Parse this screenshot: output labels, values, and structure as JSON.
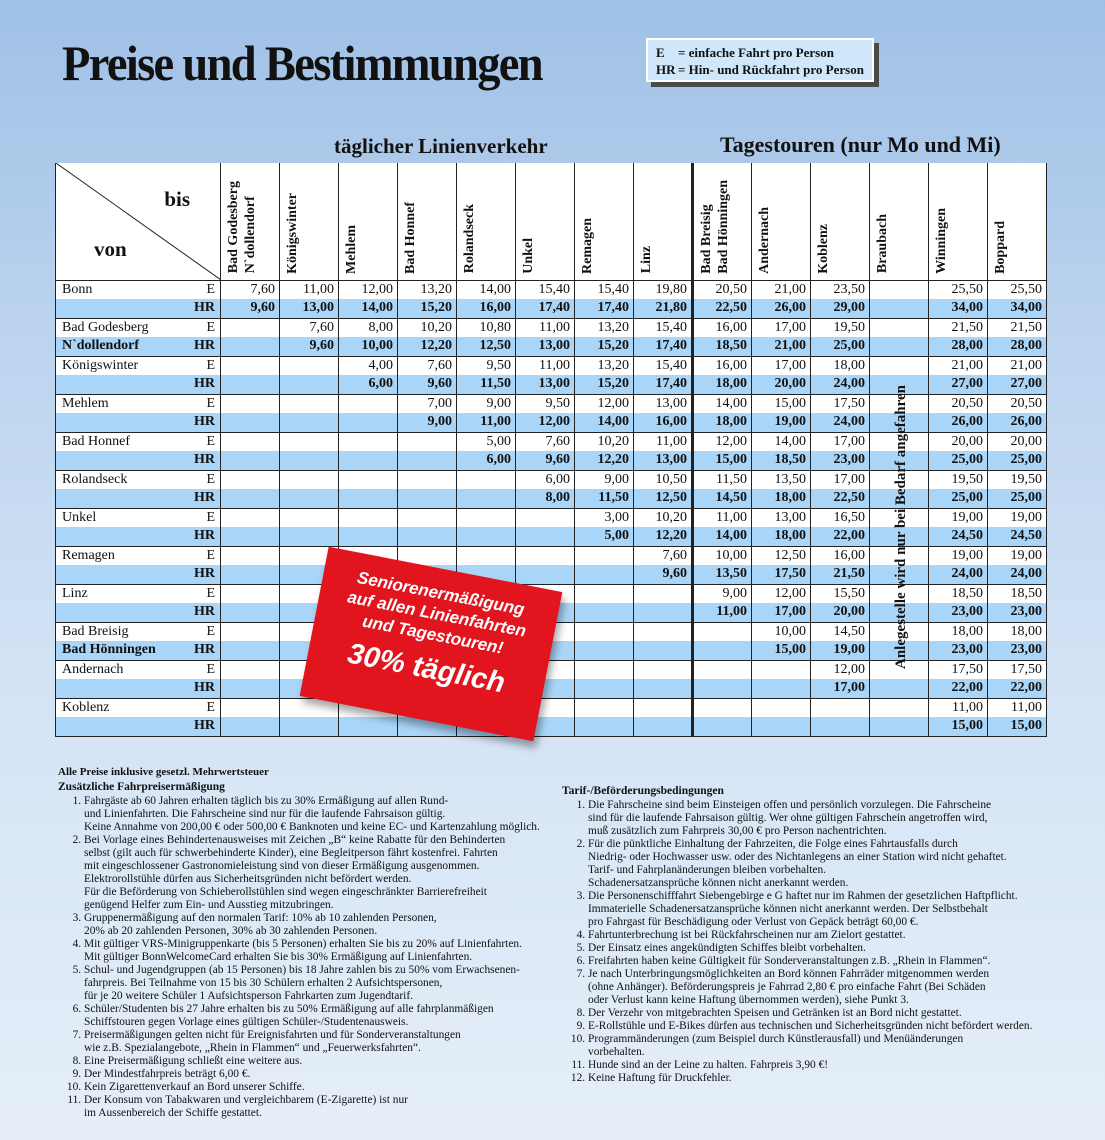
{
  "title": "Preise und Bestimmungen",
  "legend": [
    {
      "key": "E",
      "text": "= einfache Fahrt pro Person"
    },
    {
      "key": "HR",
      "text": "= Hin- und Rückfahrt pro Person"
    }
  ],
  "sections": {
    "daily": "täglicher Linienverkehr",
    "tours": "Tagestouren (nur Mo und Mi)"
  },
  "corner": {
    "to": "bis",
    "from": "von"
  },
  "columns": [
    [
      "Bad Godesberg",
      "N`dollendorf"
    ],
    [
      "Königswinter"
    ],
    [
      "Mehlem"
    ],
    [
      "Bad Honnef"
    ],
    [
      "Rolandseck"
    ],
    [
      "Unkel"
    ],
    [
      "Remagen"
    ],
    [
      "Linz"
    ],
    [
      "Bad Breisig",
      "Bad Hönningen"
    ],
    [
      "Andernach"
    ],
    [
      "Koblenz"
    ],
    [
      "Braubach"
    ],
    [
      "Winningen"
    ],
    [
      "Boppard"
    ]
  ],
  "rows": [
    {
      "from": [
        "Bonn",
        ""
      ],
      "E": [
        "7,60",
        "11,00",
        "12,00",
        "13,20",
        "14,00",
        "15,40",
        "15,40",
        "19,80",
        "20,50",
        "21,00",
        "23,50",
        "",
        "25,50",
        "25,50"
      ],
      "HR": [
        "9,60",
        "13,00",
        "14,00",
        "15,20",
        "16,00",
        "17,40",
        "17,40",
        "21,80",
        "22,50",
        "26,00",
        "29,00",
        "",
        "34,00",
        "34,00"
      ]
    },
    {
      "from": [
        "Bad Godesberg",
        "N`dollendorf"
      ],
      "E": [
        "",
        "7,60",
        "8,00",
        "10,20",
        "10,80",
        "11,00",
        "13,20",
        "15,40",
        "16,00",
        "17,00",
        "19,50",
        "",
        "21,50",
        "21,50"
      ],
      "HR": [
        "",
        "9,60",
        "10,00",
        "12,20",
        "12,50",
        "13,00",
        "15,20",
        "17,40",
        "18,50",
        "21,00",
        "25,00",
        "",
        "28,00",
        "28,00"
      ]
    },
    {
      "from": [
        "Königswinter",
        ""
      ],
      "E": [
        "",
        "",
        "4,00",
        "7,60",
        "9,50",
        "11,00",
        "13,20",
        "15,40",
        "16,00",
        "17,00",
        "18,00",
        "",
        "21,00",
        "21,00"
      ],
      "HR": [
        "",
        "",
        "6,00",
        "9,60",
        "11,50",
        "13,00",
        "15,20",
        "17,40",
        "18,00",
        "20,00",
        "24,00",
        "",
        "27,00",
        "27,00"
      ]
    },
    {
      "from": [
        "Mehlem",
        ""
      ],
      "E": [
        "",
        "",
        "",
        "7,00",
        "9,00",
        "9,50",
        "12,00",
        "13,00",
        "14,00",
        "15,00",
        "17,50",
        "",
        "20,50",
        "20,50"
      ],
      "HR": [
        "",
        "",
        "",
        "9,00",
        "11,00",
        "12,00",
        "14,00",
        "16,00",
        "18,00",
        "19,00",
        "24,00",
        "",
        "26,00",
        "26,00"
      ]
    },
    {
      "from": [
        "Bad Honnef",
        ""
      ],
      "E": [
        "",
        "",
        "",
        "",
        "5,00",
        "7,60",
        "10,20",
        "11,00",
        "12,00",
        "14,00",
        "17,00",
        "",
        "20,00",
        "20,00"
      ],
      "HR": [
        "",
        "",
        "",
        "",
        "6,00",
        "9,60",
        "12,20",
        "13,00",
        "15,00",
        "18,50",
        "23,00",
        "",
        "25,00",
        "25,00"
      ]
    },
    {
      "from": [
        "Rolandseck",
        ""
      ],
      "E": [
        "",
        "",
        "",
        "",
        "",
        "6,00",
        "9,00",
        "10,50",
        "11,50",
        "13,50",
        "17,00",
        "",
        "19,50",
        "19,50"
      ],
      "HR": [
        "",
        "",
        "",
        "",
        "",
        "8,00",
        "11,50",
        "12,50",
        "14,50",
        "18,00",
        "22,50",
        "",
        "25,00",
        "25,00"
      ]
    },
    {
      "from": [
        "Unkel",
        ""
      ],
      "E": [
        "",
        "",
        "",
        "",
        "",
        "",
        "3,00",
        "10,20",
        "11,00",
        "13,00",
        "16,50",
        "",
        "19,00",
        "19,00"
      ],
      "HR": [
        "",
        "",
        "",
        "",
        "",
        "",
        "5,00",
        "12,20",
        "14,00",
        "18,00",
        "22,00",
        "",
        "24,50",
        "24,50"
      ]
    },
    {
      "from": [
        "Remagen",
        ""
      ],
      "E": [
        "",
        "",
        "",
        "",
        "",
        "",
        "",
        "7,60",
        "10,00",
        "12,50",
        "16,00",
        "",
        "19,00",
        "19,00"
      ],
      "HR": [
        "",
        "",
        "",
        "",
        "",
        "",
        "",
        "9,60",
        "13,50",
        "17,50",
        "21,50",
        "",
        "24,00",
        "24,00"
      ]
    },
    {
      "from": [
        "Linz",
        ""
      ],
      "E": [
        "",
        "",
        "",
        "",
        "",
        "",
        "",
        "",
        "9,00",
        "12,00",
        "15,50",
        "",
        "18,50",
        "18,50"
      ],
      "HR": [
        "",
        "",
        "",
        "",
        "",
        "",
        "",
        "",
        "11,00",
        "17,00",
        "20,00",
        "",
        "23,00",
        "23,00"
      ]
    },
    {
      "from": [
        "Bad Breisig",
        "Bad Hönningen"
      ],
      "E": [
        "",
        "",
        "",
        "",
        "",
        "",
        "",
        "",
        "",
        "10,00",
        "14,50",
        "",
        "18,00",
        "18,00"
      ],
      "HR": [
        "",
        "",
        "",
        "",
        "",
        "",
        "",
        "",
        "",
        "15,00",
        "19,00",
        "",
        "23,00",
        "23,00"
      ]
    },
    {
      "from": [
        "Andernach",
        ""
      ],
      "E": [
        "",
        "",
        "",
        "",
        "",
        "",
        "",
        "",
        "",
        "",
        "12,00",
        "",
        "17,50",
        "17,50"
      ],
      "HR": [
        "",
        "",
        "",
        "",
        "",
        "",
        "",
        "",
        "",
        "",
        "17,00",
        "",
        "22,00",
        "22,00"
      ]
    },
    {
      "from": [
        "Koblenz",
        ""
      ],
      "E": [
        "",
        "",
        "",
        "",
        "",
        "",
        "",
        "",
        "",
        "",
        "",
        "",
        "11,00",
        "11,00"
      ],
      "HR": [
        "",
        "",
        "",
        "",
        "",
        "",
        "",
        "",
        "",
        "",
        "",
        "",
        "15,00",
        "15,00"
      ]
    }
  ],
  "codes": {
    "e": "E",
    "hr": "HR"
  },
  "braubach_note": "Anlegestelle wird nur bei Bedarf angefahren",
  "badge": {
    "line1": "Seniorenermäßigung",
    "line2": "auf allen Linienfahrten",
    "line3": "und Tagestouren!",
    "line4": "30% täglich"
  },
  "vat_note": "Alle Preise inklusive gesetzl. Mehrwertsteuer",
  "left_section": {
    "heading": "Zusätzliche Fahrpreisermäßigung",
    "items": [
      [
        "Fahrgäste ab 60 Jahren erhalten täglich bis zu 30% Ermäßigung auf allen Rund-",
        "und Linienfahrten. Die Fahrscheine sind nur für die laufende Fahrsaison gültig.",
        "Keine Annahme von 200,00 € oder 500,00 € Banknoten und keine EC- und Kartenzahlung möglich."
      ],
      [
        "Bei Vorlage eines Behindertenausweises mit Zeichen „B“ keine Rabatte für den Behinderten",
        "selbst (gilt auch für schwerbehinderte Kinder), eine  Begleitperson fährt kostenfrei. Fahrten",
        "mit eingeschlossener Gastronomieleistung sind von dieser Ermäßigung ausgenommen.",
        "Elektrorollstühle dürfen aus Sicherheitsgründen nicht befördert werden.",
        "Für die Beförderung von Schieberollstühlen sind wegen eingeschränkter Barrierefreiheit",
        "genügend Helfer zum Ein- und Ausstieg mitzubringen."
      ],
      [
        "Gruppenermäßigung auf den normalen Tarif: 10% ab 10 zahlenden Personen,",
        "20% ab 20 zahlenden Personen, 30% ab 30 zahlenden Personen."
      ],
      [
        "Mit gültiger VRS-Minigruppenkarte (bis 5 Personen) erhalten Sie bis zu 20% auf Linienfahrten.",
        "Mit gültiger BonnWelcomeCard erhalten Sie bis 30% Ermäßigung auf Linienfahrten."
      ],
      [
        "Schul- und Jugendgruppen (ab 15 Personen) bis 18 Jahre zahlen bis zu 50% vom Erwachsenen-",
        "fahrpreis. Bei Teilnahme von 15 bis 30 Schülern erhalten 2 Aufsichtspersonen,",
        "für je 20 weitere Schüler 1 Aufsichtsperson Fahrkarten zum Jugendtarif."
      ],
      [
        "Schüler/Studenten bis 27 Jahre erhalten bis zu 50% Ermäßigung auf alle fahrplanmäßigen",
        "Schiffstouren gegen Vorlage eines gültigen Schüler-/Studentenausweis."
      ],
      [
        "Preisermäßigungen gelten nicht für Ereignisfahrten und für Sonderveranstaltungen",
        "wie z.B. Spezialangebote, „Rhein in Flammen“ und „Feuerwerksfahrten“."
      ],
      [
        "Eine Preisermäßigung schließt eine weitere aus."
      ],
      [
        "Der Mindestfahrpreis beträgt 6,00 €."
      ],
      [
        "Kein Zigarettenverkauf an Bord unserer Schiffe."
      ],
      [
        "Der Konsum von Tabakwaren und vergleichbarem (E-Zigarette) ist nur",
        "im Aussenbereich der Schiffe gestattet."
      ]
    ]
  },
  "right_section": {
    "heading": "Tarif-/Beförderungsbedingungen",
    "items": [
      [
        "Die Fahrscheine sind beim Einsteigen offen und persönlich vorzulegen. Die Fahrscheine",
        "sind für die laufende Fahrsaison gültig. Wer ohne gültigen Fahrschein angetroffen wird,",
        "muß zusätzlich zum Fahrpreis 30,00 € pro Person nachentrichten."
      ],
      [
        "Für die pünktliche Einhaltung der Fahrzeiten, die Folge eines Fahrtausfalls durch",
        "Niedrig- oder Hochwasser usw. oder des Nichtanlegens an einer Station wird nicht gehaftet.",
        "Tarif- und Fahrplanänderungen bleiben vorbehalten.",
        "Schadenersatzansprüche können nicht anerkannt werden."
      ],
      [
        "Die Personenschifffahrt Siebengebirge e G haftet nur im Rahmen der gesetzlichen Haftpflicht.",
        "Immaterielle Schadenersatzansprüche können nicht anerkannt werden. Der Selbstbehalt",
        "pro Fahrgast für Beschädigung oder Verlust von Gepäck beträgt 60,00 €."
      ],
      [
        "Fahrtunterbrechung ist bei Rückfahrscheinen nur am Zielort gestattet."
      ],
      [
        "Der Einsatz eines angekündigten Schiffes bleibt vorbehalten."
      ],
      [
        "Freifahrten haben keine Gültigkeit für Sonderveranstaltungen z.B. „Rhein in Flammen“."
      ],
      [
        "Je nach Unterbringungsmöglichkeiten an Bord können Fahrräder mitgenommen werden",
        "(ohne Anhänger). Beförderungspreis je Fahrrad 2,80 € pro einfache Fahrt (Bei Schäden",
        "oder Verlust kann keine Haftung übernommen werden), siehe Punkt 3."
      ],
      [
        "Der Verzehr von mitgebrachten Speisen und Getränken ist an Bord nicht gestattet."
      ],
      [
        "E-Rollstühle und E-Bikes dürfen aus technischen und Sicherheitsgründen nicht befördert werden."
      ],
      [
        "Programmänderungen (zum Beispiel durch Künstlerausfall) und Menüänderungen",
        "vorbehalten."
      ],
      [
        "Hunde sind an der Leine zu halten. Fahrpreis 3,90 €!"
      ],
      [
        "Keine Haftung für Druckfehler."
      ]
    ]
  }
}
